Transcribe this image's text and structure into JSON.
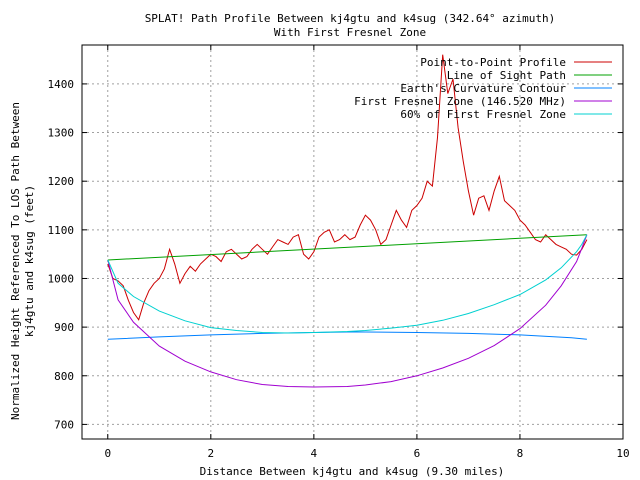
{
  "chart_data": {
    "type": "line",
    "title": "SPLAT! Path Profile Between kj4gtu and k4sug (342.64° azimuth)",
    "subtitle": "With First Fresnel Zone",
    "xlabel": "Distance Between kj4gtu and k4sug (9.30 miles)",
    "ylabel_line1": "Normalized Height Referenced To LOS Path Between",
    "ylabel_line2": "kj4gtu and k4sug (feet)",
    "xlim": [
      -0.5,
      10
    ],
    "ylim": [
      670,
      1480
    ],
    "xticks": [
      0,
      2,
      4,
      6,
      8,
      10
    ],
    "yticks": [
      700,
      800,
      900,
      1000,
      1100,
      1200,
      1300,
      1400
    ],
    "grid": true,
    "legend_position": "top-right",
    "series": [
      {
        "name": "Point-to-Point Profile",
        "color": "#cc0000",
        "x": [
          0,
          0.1,
          0.2,
          0.3,
          0.4,
          0.5,
          0.6,
          0.7,
          0.8,
          0.9,
          1.0,
          1.1,
          1.2,
          1.3,
          1.4,
          1.5,
          1.6,
          1.7,
          1.8,
          1.9,
          2.0,
          2.1,
          2.2,
          2.3,
          2.4,
          2.5,
          2.6,
          2.7,
          2.8,
          2.9,
          3.0,
          3.1,
          3.2,
          3.3,
          3.4,
          3.5,
          3.6,
          3.7,
          3.8,
          3.9,
          4.0,
          4.1,
          4.2,
          4.3,
          4.4,
          4.5,
          4.6,
          4.7,
          4.8,
          4.9,
          5.0,
          5.1,
          5.2,
          5.3,
          5.4,
          5.5,
          5.6,
          5.7,
          5.8,
          5.9,
          6.0,
          6.1,
          6.2,
          6.3,
          6.4,
          6.5,
          6.6,
          6.7,
          6.8,
          6.9,
          7.0,
          7.1,
          7.2,
          7.3,
          7.4,
          7.5,
          7.6,
          7.7,
          7.8,
          7.9,
          8.0,
          8.1,
          8.2,
          8.3,
          8.4,
          8.5,
          8.6,
          8.7,
          8.8,
          8.9,
          9.0,
          9.1,
          9.2,
          9.3
        ],
        "y": [
          1030,
          1000,
          995,
          985,
          955,
          930,
          915,
          950,
          975,
          990,
          1000,
          1020,
          1060,
          1030,
          990,
          1010,
          1025,
          1015,
          1030,
          1040,
          1050,
          1045,
          1035,
          1055,
          1060,
          1050,
          1040,
          1045,
          1060,
          1070,
          1060,
          1050,
          1065,
          1080,
          1075,
          1070,
          1085,
          1090,
          1050,
          1040,
          1055,
          1085,
          1095,
          1100,
          1075,
          1080,
          1090,
          1080,
          1085,
          1110,
          1130,
          1120,
          1100,
          1070,
          1080,
          1110,
          1140,
          1120,
          1105,
          1140,
          1150,
          1165,
          1200,
          1190,
          1290,
          1460,
          1380,
          1410,
          1310,
          1240,
          1180,
          1130,
          1165,
          1170,
          1140,
          1180,
          1210,
          1160,
          1150,
          1140,
          1120,
          1110,
          1095,
          1080,
          1075,
          1090,
          1080,
          1070,
          1065,
          1060,
          1050,
          1048,
          1060,
          1080
        ]
      },
      {
        "name": "Line of Sight Path",
        "color": "#00a000",
        "x": [
          0,
          9.3
        ],
        "y": [
          1038,
          1090
        ]
      },
      {
        "name": "Earth's Curvature Contour",
        "color": "#0080ff",
        "x": [
          0,
          1,
          2,
          3,
          4,
          4.65,
          5,
          6,
          7,
          8,
          9,
          9.3
        ],
        "y": [
          875,
          880,
          884,
          887,
          889,
          890,
          890,
          889,
          887,
          884,
          878,
          875
        ]
      },
      {
        "name": "First Fresnel Zone (146.520 MHz)",
        "color": "#a000d0",
        "x": [
          0,
          0.2,
          0.5,
          1,
          1.5,
          2,
          2.5,
          3,
          3.5,
          4,
          4.65,
          5,
          5.5,
          6,
          6.5,
          7,
          7.5,
          8,
          8.5,
          8.8,
          9.1,
          9.2,
          9.3
        ],
        "y": [
          1038,
          956,
          910,
          861,
          830,
          808,
          792,
          782,
          778,
          777,
          778,
          781,
          788,
          800,
          816,
          836,
          862,
          897,
          945,
          985,
          1035,
          1062,
          1090
        ]
      },
      {
        "name": "60% of First Fresnel Zone",
        "color": "#00d0d0",
        "x": [
          0,
          0.2,
          0.5,
          1,
          1.5,
          2,
          2.5,
          3,
          3.5,
          4,
          4.65,
          5,
          5.5,
          6,
          6.5,
          7,
          7.5,
          8,
          8.5,
          8.8,
          9.1,
          9.2,
          9.3
        ],
        "y": [
          1038,
          990,
          963,
          933,
          913,
          899,
          893,
          889,
          888,
          889,
          891,
          893,
          898,
          904,
          914,
          928,
          946,
          967,
          997,
          1022,
          1055,
          1070,
          1090
        ]
      }
    ]
  }
}
